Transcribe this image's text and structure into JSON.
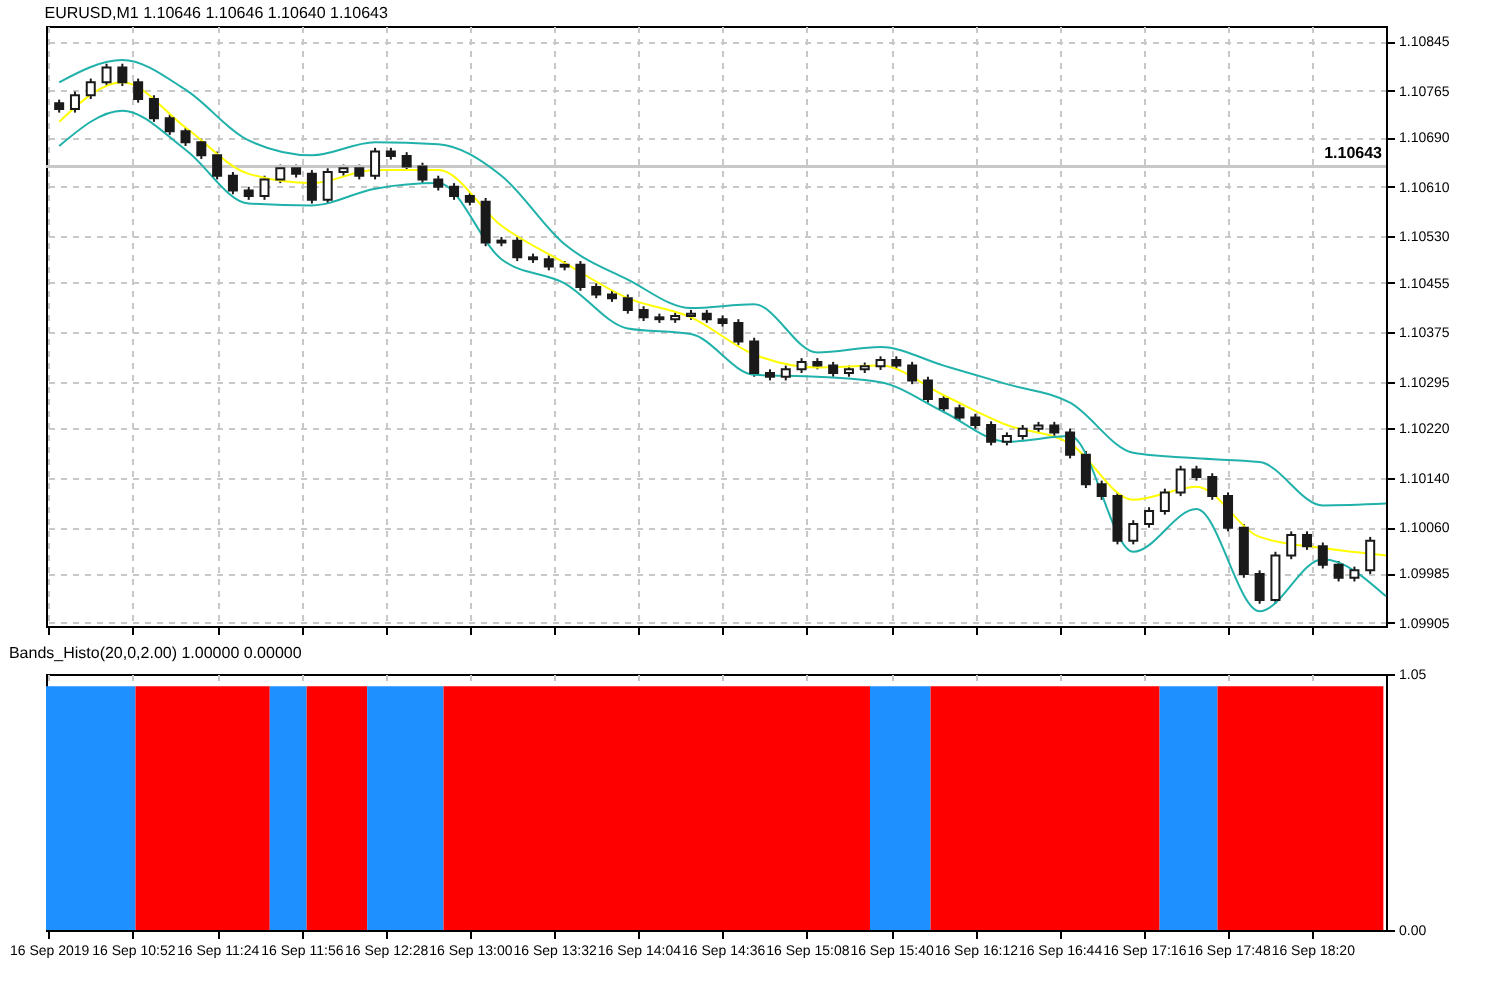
{
  "chart_data": [
    {
      "type": "candlestick",
      "title": "EURUSD,M1 1.10646 1.10646 1.10640 1.10643",
      "color": "#1a1a1a",
      "x": [
        "2019-09-16T10:24",
        "2019-09-16T10:30",
        "2019-09-16T10:36",
        "2019-09-16T10:42",
        "2019-09-16T10:48",
        "2019-09-16T10:54",
        "2019-09-16T11:00",
        "2019-09-16T11:06",
        "2019-09-16T11:12",
        "2019-09-16T11:18",
        "2019-09-16T11:24",
        "2019-09-16T11:30",
        "2019-09-16T11:36",
        "2019-09-16T11:42",
        "2019-09-16T11:48",
        "2019-09-16T11:54",
        "2019-09-16T12:00",
        "2019-09-16T12:06",
        "2019-09-16T12:12",
        "2019-09-16T12:18",
        "2019-09-16T12:24",
        "2019-09-16T12:30",
        "2019-09-16T12:36",
        "2019-09-16T12:42",
        "2019-09-16T12:48",
        "2019-09-16T12:54",
        "2019-09-16T13:00",
        "2019-09-16T13:06",
        "2019-09-16T13:12",
        "2019-09-16T13:18",
        "2019-09-16T13:24",
        "2019-09-16T13:30",
        "2019-09-16T13:36",
        "2019-09-16T13:42",
        "2019-09-16T13:48",
        "2019-09-16T13:54",
        "2019-09-16T14:00",
        "2019-09-16T14:06",
        "2019-09-16T14:12",
        "2019-09-16T14:18",
        "2019-09-16T14:24",
        "2019-09-16T14:30",
        "2019-09-16T14:36",
        "2019-09-16T14:42",
        "2019-09-16T14:48",
        "2019-09-16T14:54",
        "2019-09-16T15:00",
        "2019-09-16T15:06",
        "2019-09-16T15:12",
        "2019-09-16T15:18",
        "2019-09-16T15:24",
        "2019-09-16T15:30",
        "2019-09-16T15:36",
        "2019-09-16T15:42",
        "2019-09-16T15:48",
        "2019-09-16T15:54",
        "2019-09-16T16:00",
        "2019-09-16T16:06",
        "2019-09-16T16:12",
        "2019-09-16T16:18",
        "2019-09-16T16:24",
        "2019-09-16T16:30",
        "2019-09-16T16:36",
        "2019-09-16T16:42",
        "2019-09-16T16:48",
        "2019-09-16T16:54",
        "2019-09-16T17:00",
        "2019-09-16T17:06",
        "2019-09-16T17:12",
        "2019-09-16T17:18",
        "2019-09-16T17:24",
        "2019-09-16T17:30",
        "2019-09-16T17:36",
        "2019-09-16T17:42",
        "2019-09-16T17:48",
        "2019-09-16T17:54",
        "2019-09-16T18:00",
        "2019-09-16T18:06",
        "2019-09-16T18:12",
        "2019-09-16T18:18",
        "2019-09-16T18:24",
        "2019-09-16T18:30",
        "2019-09-16T18:36",
        "2019-09-16T18:42"
      ],
      "ohlc": [
        [
          1.10745,
          1.10751,
          1.1073,
          1.10736
        ],
        [
          1.10736,
          1.10764,
          1.1073,
          1.10758
        ],
        [
          1.10758,
          1.10785,
          1.10752,
          1.10779
        ],
        [
          1.10779,
          1.10809,
          1.10773,
          1.10803
        ],
        [
          1.10803,
          1.10809,
          1.10773,
          1.10779
        ],
        [
          1.10779,
          1.10785,
          1.10746,
          1.10752
        ],
        [
          1.10752,
          1.10758,
          1.10715,
          1.10721
        ],
        [
          1.10721,
          1.10727,
          1.10694,
          1.107
        ],
        [
          1.107,
          1.10706,
          1.10676,
          1.10682
        ],
        [
          1.10682,
          1.10688,
          1.10655,
          1.10661
        ],
        [
          1.10661,
          1.10667,
          1.10622,
          1.10628
        ],
        [
          1.10628,
          1.10634,
          1.10598,
          1.10604
        ],
        [
          1.10604,
          1.1061,
          1.10589,
          1.10595
        ],
        [
          1.10595,
          1.10628,
          1.10589,
          1.10622
        ],
        [
          1.10622,
          1.10646,
          1.10616,
          1.1064
        ],
        [
          1.1064,
          1.10646,
          1.10625,
          1.10631
        ],
        [
          1.10631,
          1.10637,
          1.10583,
          1.10589
        ],
        [
          1.10589,
          1.1064,
          1.10583,
          1.10634
        ],
        [
          1.10634,
          1.10646,
          1.10628,
          1.1064
        ],
        [
          1.1064,
          1.10646,
          1.10622,
          1.10628
        ],
        [
          1.10628,
          1.10673,
          1.10622,
          1.10667
        ],
        [
          1.10667,
          1.10673,
          1.10654,
          1.1066
        ],
        [
          1.1066,
          1.10666,
          1.10637,
          1.10643
        ],
        [
          1.10643,
          1.10649,
          1.10616,
          1.10622
        ],
        [
          1.10622,
          1.10628,
          1.10604,
          1.1061
        ],
        [
          1.1061,
          1.10616,
          1.10589,
          1.10595
        ],
        [
          1.10595,
          1.10601,
          1.1058,
          1.10586
        ],
        [
          1.10586,
          1.10592,
          1.10514,
          1.1052
        ],
        [
          1.1052,
          1.10529,
          1.10514,
          1.10523
        ],
        [
          1.10523,
          1.10529,
          1.1049,
          1.10496
        ],
        [
          1.10496,
          1.10502,
          1.10487,
          1.10493
        ],
        [
          1.10493,
          1.10499,
          1.10475,
          1.10481
        ],
        [
          1.10481,
          1.1049,
          1.10475,
          1.10484
        ],
        [
          1.10484,
          1.1049,
          1.10442,
          1.10448
        ],
        [
          1.10448,
          1.10454,
          1.1043,
          1.10436
        ],
        [
          1.10436,
          1.10442,
          1.10424,
          1.1043
        ],
        [
          1.1043,
          1.10436,
          1.10405,
          1.10411
        ],
        [
          1.10411,
          1.10417,
          1.10393,
          1.10399
        ],
        [
          1.10399,
          1.10405,
          1.1039,
          1.10396
        ],
        [
          1.10396,
          1.10407,
          1.1039,
          1.10401
        ],
        [
          1.10401,
          1.10411,
          1.10395,
          1.10405
        ],
        [
          1.10405,
          1.10411,
          1.1039,
          1.10396
        ],
        [
          1.10396,
          1.10402,
          1.10384,
          1.1039
        ],
        [
          1.1039,
          1.10396,
          1.10354,
          1.1036
        ],
        [
          1.1036,
          1.10366,
          1.10303,
          1.10309
        ],
        [
          1.10309,
          1.10315,
          1.10297,
          1.10303
        ],
        [
          1.10303,
          1.10321,
          1.10297,
          1.10315
        ],
        [
          1.10315,
          1.10333,
          1.10309,
          1.10327
        ],
        [
          1.10327,
          1.10333,
          1.10315,
          1.10321
        ],
        [
          1.10321,
          1.10327,
          1.10303,
          1.10309
        ],
        [
          1.10309,
          1.10321,
          1.10303,
          1.10315
        ],
        [
          1.10315,
          1.10326,
          1.10309,
          1.1032
        ],
        [
          1.1032,
          1.10336,
          1.10314,
          1.1033
        ],
        [
          1.1033,
          1.10336,
          1.10315,
          1.10321
        ],
        [
          1.10321,
          1.10327,
          1.10291,
          1.10297
        ],
        [
          1.10297,
          1.10303,
          1.10261,
          1.10267
        ],
        [
          1.10267,
          1.10273,
          1.10246,
          1.10252
        ],
        [
          1.10252,
          1.10258,
          1.10231,
          1.10237
        ],
        [
          1.10237,
          1.10243,
          1.10219,
          1.10225
        ],
        [
          1.10225,
          1.10231,
          1.10192,
          1.10198
        ],
        [
          1.10198,
          1.10213,
          1.10192,
          1.10207
        ],
        [
          1.10207,
          1.10225,
          1.10201,
          1.10219
        ],
        [
          1.10219,
          1.1023,
          1.10213,
          1.10224
        ],
        [
          1.10224,
          1.1023,
          1.10207,
          1.10213
        ],
        [
          1.10213,
          1.10219,
          1.10171,
          1.10177
        ],
        [
          1.10177,
          1.10183,
          1.10123,
          1.10129
        ],
        [
          1.10129,
          1.10135,
          1.10104,
          1.1011
        ],
        [
          1.1011,
          1.10116,
          1.10032,
          1.10038
        ],
        [
          1.10038,
          1.10071,
          1.10032,
          1.10065
        ],
        [
          1.10065,
          1.10092,
          1.10059,
          1.10086
        ],
        [
          1.10086,
          1.10122,
          1.1008,
          1.10116
        ],
        [
          1.10116,
          1.10159,
          1.1011,
          1.10153
        ],
        [
          1.10153,
          1.10159,
          1.10135,
          1.10141
        ],
        [
          1.10141,
          1.10147,
          1.10104,
          1.1011
        ],
        [
          1.1011,
          1.10116,
          1.10053,
          1.10059
        ],
        [
          1.10059,
          1.10065,
          1.09978,
          1.09984
        ],
        [
          1.09984,
          1.0999,
          1.09936,
          1.09942
        ],
        [
          1.09942,
          1.1002,
          1.09936,
          1.10014
        ],
        [
          1.10014,
          1.10053,
          1.10008,
          1.10047
        ],
        [
          1.10047,
          1.10053,
          1.10023,
          1.10029
        ],
        [
          1.10029,
          1.10035,
          1.09993,
          1.09999
        ],
        [
          1.09999,
          1.10005,
          1.09972,
          1.09978
        ],
        [
          1.09978,
          1.09996,
          1.09972,
          1.0999
        ],
        [
          1.0999,
          1.10044,
          1.09984,
          1.10038
        ]
      ],
      "series": [
        {
          "type": "line",
          "color": "#20b2aa",
          "x": [
            "2019-09-16T10:24",
            "2019-09-16T10:48",
            "2019-09-16T11:12",
            "2019-09-16T11:36",
            "2019-09-16T12:00",
            "2019-09-16T12:24",
            "2019-09-16T12:48",
            "2019-09-16T13:12",
            "2019-09-16T13:36",
            "2019-09-16T14:00",
            "2019-09-16T14:24",
            "2019-09-16T14:48",
            "2019-09-16T15:12",
            "2019-09-16T15:36",
            "2019-09-16T16:00",
            "2019-09-16T16:24",
            "2019-09-16T16:48",
            "2019-09-16T17:12",
            "2019-09-16T17:36",
            "2019-09-16T18:00",
            "2019-09-16T18:24",
            "2019-09-16T18:48"
          ],
          "values": [
            1.10779,
            1.10815,
            1.10767,
            1.10685,
            1.10661,
            1.10682,
            1.10679,
            1.10628,
            1.10517,
            1.1046,
            1.10414,
            1.1042,
            1.10342,
            1.10351,
            1.10321,
            1.10291,
            1.10261,
            1.1018,
            1.10171,
            1.10165,
            1.10095,
            1.10098
          ]
        },
        {
          "type": "line",
          "color": "#ffff00",
          "x": [
            "2019-09-16T10:24",
            "2019-09-16T10:48",
            "2019-09-16T11:12",
            "2019-09-16T11:36",
            "2019-09-16T12:00",
            "2019-09-16T12:24",
            "2019-09-16T12:48",
            "2019-09-16T13:12",
            "2019-09-16T13:36",
            "2019-09-16T14:00",
            "2019-09-16T14:24",
            "2019-09-16T14:48",
            "2019-09-16T15:12",
            "2019-09-16T15:36",
            "2019-09-16T16:00",
            "2019-09-16T16:24",
            "2019-09-16T16:48",
            "2019-09-16T17:12",
            "2019-09-16T17:36",
            "2019-09-16T18:00",
            "2019-09-16T18:24",
            "2019-09-16T18:48"
          ],
          "values": [
            1.10715,
            1.10779,
            1.10706,
            1.10631,
            1.10616,
            1.10637,
            1.10637,
            1.10547,
            1.10487,
            1.1043,
            1.10399,
            1.10339,
            1.10318,
            1.10321,
            1.10273,
            1.10225,
            1.10195,
            1.10104,
            1.10125,
            1.10044,
            1.10026,
            1.10014
          ]
        },
        {
          "type": "line",
          "color": "#20b2aa",
          "x": [
            "2019-09-16T10:24",
            "2019-09-16T10:48",
            "2019-09-16T11:12",
            "2019-09-16T11:36",
            "2019-09-16T12:00",
            "2019-09-16T12:24",
            "2019-09-16T12:48",
            "2019-09-16T13:12",
            "2019-09-16T13:36",
            "2019-09-16T14:00",
            "2019-09-16T14:24",
            "2019-09-16T14:48",
            "2019-09-16T15:12",
            "2019-09-16T15:36",
            "2019-09-16T16:00",
            "2019-09-16T16:24",
            "2019-09-16T16:48",
            "2019-09-16T17:12",
            "2019-09-16T17:36",
            "2019-09-16T18:00",
            "2019-09-16T18:24",
            "2019-09-16T18:48"
          ],
          "values": [
            1.10676,
            1.10733,
            1.1067,
            1.10583,
            1.1058,
            1.10607,
            1.10616,
            1.10493,
            1.10454,
            1.10381,
            1.10372,
            1.10306,
            1.10303,
            1.10294,
            1.10246,
            1.10198,
            1.10207,
            1.1002,
            1.10089,
            1.09924,
            1.10008,
            1.09948
          ]
        }
      ],
      "xlim": [
        "2019-09-16T10:19",
        "2019-09-16T18:48"
      ],
      "xticks": [
        {
          "value": "2019-09-16T10:20",
          "label": null
        },
        {
          "value": "2019-09-16T10:52",
          "label": null
        },
        {
          "value": "2019-09-16T11:24",
          "label": null
        },
        {
          "value": "2019-09-16T11:56",
          "label": null
        },
        {
          "value": "2019-09-16T12:28",
          "label": null
        },
        {
          "value": "2019-09-16T13:00",
          "label": null
        },
        {
          "value": "2019-09-16T13:32",
          "label": null
        },
        {
          "value": "2019-09-16T14:04",
          "label": null
        },
        {
          "value": "2019-09-16T14:36",
          "label": null
        },
        {
          "value": "2019-09-16T15:08",
          "label": null
        },
        {
          "value": "2019-09-16T15:40",
          "label": null
        },
        {
          "value": "2019-09-16T16:12",
          "label": null
        },
        {
          "value": "2019-09-16T16:44",
          "label": null
        },
        {
          "value": "2019-09-16T17:16",
          "label": null
        },
        {
          "value": "2019-09-16T17:48",
          "label": null
        },
        {
          "value": "2019-09-16T18:20",
          "label": null
        }
      ],
      "ylim": [
        1.099,
        1.1087
      ],
      "yticks": [
        1.10845,
        1.10765,
        {
          "value": 1.1069,
          "label": "1.10690"
        },
        {
          "value": 1.1061,
          "label": "1.10610"
        },
        {
          "value": 1.1053,
          "label": "1.10530"
        },
        1.10455,
        1.10375,
        1.10295,
        {
          "value": 1.1022,
          "label": "1.10220"
        },
        {
          "value": 1.1014,
          "label": "1.10140"
        },
        {
          "value": 1.1006,
          "label": "1.10060"
        },
        1.09985,
        1.09905
      ],
      "ref_lines": [
        {
          "axis": "y",
          "value": 1.10643,
          "label": "1.10643",
          "color": "#c8c8c8"
        }
      ],
      "grid": true,
      "tick_labels": "y"
    },
    {
      "type": "histogram",
      "title": "Bands_Histo(20,0,2.00) 1.00000 0.00000",
      "bins": [
        "2019-09-16T10:19",
        "2019-09-16T10:53",
        "2019-09-16T11:44",
        "2019-09-16T11:58",
        "2019-09-16T12:21",
        "2019-09-16T12:50",
        "2019-09-16T15:32",
        "2019-09-16T15:55",
        "2019-09-16T17:22",
        "2019-09-16T17:44",
        "2019-09-16T18:47"
      ],
      "values": [
        1,
        1,
        1,
        1,
        1,
        1,
        1,
        1,
        1,
        1
      ],
      "colors": [
        "#1e90ff",
        "#ff0000",
        "#1e90ff",
        "#ff0000",
        "#1e90ff",
        "#ff0000",
        "#1e90ff",
        "#ff0000",
        "#1e90ff",
        "#ff0000"
      ],
      "xlim": [
        "2019-09-16T10:19",
        "2019-09-16T18:48"
      ],
      "xticks": [
        {
          "value": "2019-09-16T10:20",
          "label": "16 Sep 2019"
        },
        {
          "value": "2019-09-16T10:52",
          "label": "16 Sep 10:52"
        },
        {
          "value": "2019-09-16T11:24",
          "label": "16 Sep 11:24"
        },
        {
          "value": "2019-09-16T11:56",
          "label": "16 Sep 11:56"
        },
        {
          "value": "2019-09-16T12:28",
          "label": "16 Sep 12:28"
        },
        {
          "value": "2019-09-16T13:00",
          "label": "16 Sep 13:00"
        },
        {
          "value": "2019-09-16T13:32",
          "label": "16 Sep 13:32"
        },
        {
          "value": "2019-09-16T14:04",
          "label": "16 Sep 14:04"
        },
        {
          "value": "2019-09-16T14:36",
          "label": "16 Sep 14:36"
        },
        {
          "value": "2019-09-16T15:08",
          "label": "16 Sep 15:08"
        },
        {
          "value": "2019-09-16T15:40",
          "label": "16 Sep 15:40"
        },
        {
          "value": "2019-09-16T16:12",
          "label": "16 Sep 16:12"
        },
        {
          "value": "2019-09-16T16:44",
          "label": "16 Sep 16:44"
        },
        {
          "value": "2019-09-16T17:16",
          "label": "16 Sep 17:16"
        },
        {
          "value": "2019-09-16T17:48",
          "label": "16 Sep 17:48"
        },
        {
          "value": "2019-09-16T18:20",
          "label": "16 Sep 18:20"
        }
      ],
      "ylim": [
        0,
        1.05
      ],
      "yticks": [
        1.05,
        {
          "value": 0,
          "label": "0.00"
        }
      ],
      "grid": "x"
    }
  ]
}
